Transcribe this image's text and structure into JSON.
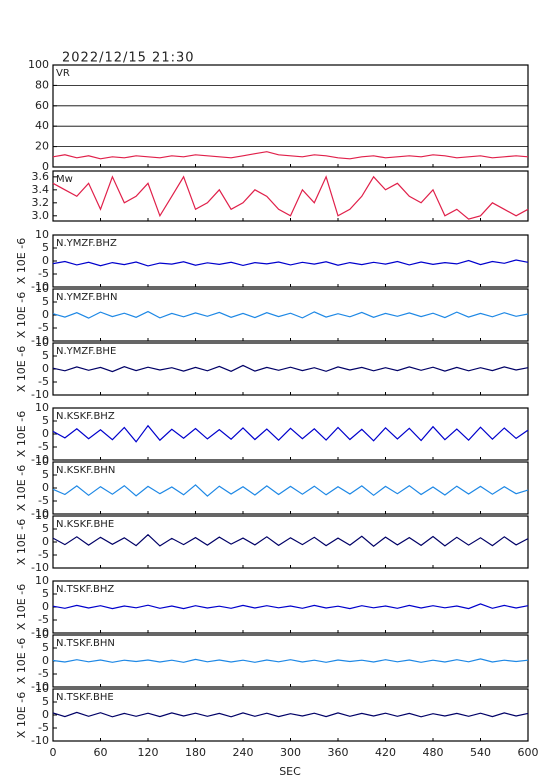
{
  "chart_data": [
    {
      "type": "line",
      "title": "2022/12/15 21:30",
      "grid": true,
      "xlim": [
        0,
        600
      ],
      "xticks": [
        0,
        60,
        120,
        180,
        240,
        300,
        360,
        420,
        480,
        540,
        600
      ],
      "ylim": [
        0,
        100
      ],
      "yticks": [
        0,
        20,
        40,
        60,
        80,
        100
      ],
      "x": [
        0,
        15,
        30,
        45,
        60,
        75,
        90,
        105,
        120,
        135,
        150,
        165,
        180,
        195,
        210,
        225,
        240,
        255,
        270,
        285,
        300,
        315,
        330,
        345,
        360,
        375,
        390,
        405,
        420,
        435,
        450,
        465,
        480,
        495,
        510,
        525,
        540,
        555,
        570,
        585,
        600
      ],
      "series": [
        {
          "name": "VR",
          "color": "#e0204a",
          "values": [
            10,
            12,
            9,
            11,
            8,
            10,
            9,
            11,
            10,
            9,
            11,
            10,
            12,
            11,
            10,
            9,
            11,
            13,
            15,
            12,
            11,
            10,
            12,
            11,
            9,
            8,
            10,
            11,
            9,
            10,
            11,
            10,
            12,
            11,
            9,
            10,
            11,
            9,
            10,
            11,
            10
          ]
        }
      ]
    },
    {
      "type": "line",
      "grid": false,
      "xlim": [
        0,
        600
      ],
      "xticks": [
        0,
        60,
        120,
        180,
        240,
        300,
        360,
        420,
        480,
        540,
        600
      ],
      "ylim": [
        2.92,
        3.69
      ],
      "yticks": [
        {
          "value": 3,
          "label": "3.0"
        },
        3.2,
        3.4,
        3.6
      ],
      "x": [
        0,
        15,
        30,
        45,
        60,
        75,
        90,
        105,
        120,
        135,
        150,
        165,
        180,
        195,
        210,
        225,
        240,
        255,
        270,
        285,
        300,
        315,
        330,
        345,
        360,
        375,
        390,
        405,
        420,
        435,
        450,
        465,
        480,
        495,
        510,
        525,
        540,
        555,
        570,
        585,
        600
      ],
      "series": [
        {
          "name": "Mw",
          "color": "#e0204a",
          "values": [
            3.5,
            3.4,
            3.3,
            3.5,
            3.1,
            3.6,
            3.2,
            3.3,
            3.5,
            3.0,
            3.3,
            3.6,
            3.1,
            3.2,
            3.4,
            3.1,
            3.2,
            3.4,
            3.3,
            3.1,
            3.0,
            3.4,
            3.2,
            3.6,
            3.0,
            3.1,
            3.3,
            3.6,
            3.4,
            3.5,
            3.3,
            3.2,
            3.4,
            3.0,
            3.1,
            2.95,
            3.0,
            3.2,
            3.1,
            3.0,
            3.1
          ]
        }
      ]
    },
    {
      "type": "line",
      "ylabel": "X 10E -6",
      "xlim": [
        0,
        600
      ],
      "xticks": [
        0,
        60,
        120,
        180,
        240,
        300,
        360,
        420,
        480,
        540,
        600
      ],
      "ylim": [
        -10,
        10
      ],
      "yticks": [
        -10,
        -5,
        0,
        5,
        10
      ],
      "x": [
        0,
        15,
        30,
        45,
        60,
        75,
        90,
        105,
        120,
        135,
        150,
        165,
        180,
        195,
        210,
        225,
        240,
        255,
        270,
        285,
        300,
        315,
        330,
        345,
        360,
        375,
        390,
        405,
        420,
        435,
        450,
        465,
        480,
        495,
        510,
        525,
        540,
        555,
        570,
        585,
        600
      ],
      "series": [
        {
          "name": "N.YMZF.BHZ",
          "color": "#0000cc",
          "values": [
            -1,
            -0.2,
            -1.5,
            -0.5,
            -1.8,
            -0.6,
            -1.4,
            -0.4,
            -1.9,
            -0.8,
            -1.2,
            -0.3,
            -1.6,
            -0.7,
            -1.3,
            -0.5,
            -1.7,
            -0.6,
            -1.1,
            -0.4,
            -1.5,
            -0.5,
            -1.2,
            -0.3,
            -1.6,
            -0.6,
            -1.4,
            -0.5,
            -1.2,
            -0.2,
            -1.5,
            -0.4,
            -1.3,
            -0.6,
            -1.1,
            0.2,
            -1.4,
            -0.2,
            -0.9,
            0.4,
            -0.5
          ]
        }
      ]
    },
    {
      "type": "line",
      "ylabel": "X 10E -6",
      "xlim": [
        0,
        600
      ],
      "xticks": [
        0,
        60,
        120,
        180,
        240,
        300,
        360,
        420,
        480,
        540,
        600
      ],
      "ylim": [
        -10,
        10
      ],
      "yticks": [
        -10,
        -5,
        0,
        5,
        10
      ],
      "x": [
        0,
        15,
        30,
        45,
        60,
        75,
        90,
        105,
        120,
        135,
        150,
        165,
        180,
        195,
        210,
        225,
        240,
        255,
        270,
        285,
        300,
        315,
        330,
        345,
        360,
        375,
        390,
        405,
        420,
        435,
        450,
        465,
        480,
        495,
        510,
        525,
        540,
        555,
        570,
        585,
        600
      ],
      "series": [
        {
          "name": "N.YMZF.BHN",
          "color": "#1e88e5",
          "values": [
            0.5,
            -0.8,
            0.9,
            -1.2,
            1.1,
            -0.6,
            0.7,
            -0.9,
            1.3,
            -1.1,
            0.6,
            -0.7,
            0.8,
            -0.5,
            1.0,
            -0.9,
            0.6,
            -1.0,
            0.9,
            -0.6,
            0.7,
            -1.1,
            1.2,
            -0.8,
            0.5,
            -0.7,
            1.0,
            -0.9,
            0.6,
            -0.5,
            0.8,
            -0.6,
            0.7,
            -1.0,
            1.1,
            -0.8,
            0.6,
            -0.7,
            0.9,
            -0.5,
            0.4
          ]
        }
      ]
    },
    {
      "type": "line",
      "ylabel": "X 10E -6",
      "xlim": [
        0,
        600
      ],
      "xticks": [
        0,
        60,
        120,
        180,
        240,
        300,
        360,
        420,
        480,
        540,
        600
      ],
      "ylim": [
        -10,
        10
      ],
      "yticks": [
        -10,
        -5,
        0,
        5,
        10
      ],
      "x": [
        0,
        15,
        30,
        45,
        60,
        75,
        90,
        105,
        120,
        135,
        150,
        165,
        180,
        195,
        210,
        225,
        240,
        255,
        270,
        285,
        300,
        315,
        330,
        345,
        360,
        375,
        390,
        405,
        420,
        435,
        450,
        465,
        480,
        495,
        510,
        525,
        540,
        555,
        570,
        585,
        600
      ],
      "series": [
        {
          "name": "N.YMZF.BHE",
          "color": "#000066",
          "values": [
            0.3,
            -0.7,
            0.8,
            -0.5,
            0.6,
            -1.0,
            0.9,
            -0.6,
            0.7,
            -0.4,
            0.5,
            -0.8,
            0.6,
            -0.7,
            1.0,
            -0.9,
            1.4,
            -0.8,
            0.6,
            -0.5,
            0.7,
            -0.6,
            0.5,
            -0.9,
            0.8,
            -0.4,
            0.6,
            -0.7,
            0.5,
            -0.6,
            0.8,
            -0.5,
            0.7,
            -0.8,
            0.6,
            -0.7,
            0.5,
            -0.6,
            0.8,
            -0.4,
            0.5
          ]
        }
      ]
    },
    {
      "type": "line",
      "ylabel": "X 10E -6",
      "xlim": [
        0,
        600
      ],
      "xticks": [
        0,
        60,
        120,
        180,
        240,
        300,
        360,
        420,
        480,
        540,
        600
      ],
      "ylim": [
        -10,
        10
      ],
      "yticks": [
        -10,
        -5,
        0,
        5,
        10
      ],
      "x": [
        0,
        15,
        30,
        45,
        60,
        75,
        90,
        105,
        120,
        135,
        150,
        165,
        180,
        195,
        210,
        225,
        240,
        255,
        270,
        285,
        300,
        315,
        330,
        345,
        360,
        375,
        390,
        405,
        420,
        435,
        450,
        465,
        480,
        495,
        510,
        525,
        540,
        555,
        570,
        585,
        600
      ],
      "series": [
        {
          "name": "N.KSKF.BHZ",
          "color": "#0000cc",
          "values": [
            1,
            -1.5,
            2,
            -1.8,
            1.6,
            -2.2,
            2.5,
            -3,
            3.2,
            -2.4,
            1.8,
            -1.6,
            2.1,
            -1.9,
            1.7,
            -2,
            2.3,
            -2.1,
            1.9,
            -2.4,
            2.2,
            -1.8,
            2,
            -2.3,
            2.5,
            -2.1,
            1.8,
            -2.6,
            2.4,
            -1.9,
            2.2,
            -2.5,
            2.8,
            -2.2,
            1.9,
            -2.4,
            2.6,
            -2,
            2.3,
            -1.7,
            1.5
          ]
        }
      ]
    },
    {
      "type": "line",
      "ylabel": "X 10E -6",
      "xlim": [
        0,
        600
      ],
      "xticks": [
        0,
        60,
        120,
        180,
        240,
        300,
        360,
        420,
        480,
        540,
        600
      ],
      "ylim": [
        -10,
        10
      ],
      "yticks": [
        -10,
        -5,
        0,
        5,
        10
      ],
      "x": [
        0,
        15,
        30,
        45,
        60,
        75,
        90,
        105,
        120,
        135,
        150,
        165,
        180,
        195,
        210,
        225,
        240,
        255,
        270,
        285,
        300,
        315,
        330,
        345,
        360,
        375,
        390,
        405,
        420,
        435,
        450,
        465,
        480,
        495,
        510,
        525,
        540,
        555,
        570,
        585,
        600
      ],
      "series": [
        {
          "name": "N.KSKF.BHN",
          "color": "#1e88e5",
          "values": [
            -0.5,
            -2.5,
            0.8,
            -2.8,
            0.5,
            -2.4,
            0.9,
            -3,
            0.6,
            -2.2,
            0.4,
            -2.6,
            1.2,
            -3.1,
            0.7,
            -2.3,
            0.5,
            -2.7,
            0.8,
            -2.5,
            0.6,
            -2.4,
            0.7,
            -2.6,
            0.5,
            -2.3,
            0.8,
            -2.8,
            0.6,
            -2.2,
            0.9,
            -2.5,
            0.4,
            -2.7,
            0.7,
            -2.3,
            0.6,
            -2.4,
            0.5,
            -2.2,
            -0.8
          ]
        }
      ]
    },
    {
      "type": "line",
      "ylabel": "X 10E -6",
      "xlim": [
        0,
        600
      ],
      "xticks": [
        0,
        60,
        120,
        180,
        240,
        300,
        360,
        420,
        480,
        540,
        600
      ],
      "ylim": [
        -10,
        10
      ],
      "yticks": [
        -10,
        -5,
        0,
        5,
        10
      ],
      "x": [
        0,
        15,
        30,
        45,
        60,
        75,
        90,
        105,
        120,
        135,
        150,
        165,
        180,
        195,
        210,
        225,
        240,
        255,
        270,
        285,
        300,
        315,
        330,
        345,
        360,
        375,
        390,
        405,
        420,
        435,
        450,
        465,
        480,
        495,
        510,
        525,
        540,
        555,
        570,
        585,
        600
      ],
      "series": [
        {
          "name": "N.KSKF.BHE",
          "color": "#000066",
          "values": [
            1.5,
            -1,
            2,
            -1.2,
            1.8,
            -0.9,
            1.6,
            -1.4,
            2.8,
            -1.5,
            1.4,
            -1,
            1.7,
            -1.2,
            1.9,
            -0.8,
            1.5,
            -1.1,
            2,
            -1.3,
            1.6,
            -1,
            1.8,
            -1.4,
            1.5,
            -1.2,
            2.2,
            -1.6,
            1.9,
            -1.1,
            1.7,
            -1.3,
            2.1,
            -1.5,
            1.8,
            -1.2,
            1.6,
            -1.4,
            2,
            -1.1,
            1.3
          ]
        }
      ]
    },
    {
      "type": "line",
      "ylabel": "X 10E -6",
      "xlim": [
        0,
        600
      ],
      "xticks": [
        0,
        60,
        120,
        180,
        240,
        300,
        360,
        420,
        480,
        540,
        600
      ],
      "ylim": [
        -10,
        10
      ],
      "yticks": [
        -10,
        -5,
        0,
        5,
        10
      ],
      "x": [
        0,
        15,
        30,
        45,
        60,
        75,
        90,
        105,
        120,
        135,
        150,
        165,
        180,
        195,
        210,
        225,
        240,
        255,
        270,
        285,
        300,
        315,
        330,
        345,
        360,
        375,
        390,
        405,
        420,
        435,
        450,
        465,
        480,
        495,
        510,
        525,
        540,
        555,
        570,
        585,
        600
      ],
      "series": [
        {
          "name": "N.TSKF.BHZ",
          "color": "#0000cc",
          "values": [
            0.3,
            -0.5,
            0.6,
            -0.4,
            0.5,
            -0.6,
            0.4,
            -0.3,
            0.7,
            -0.5,
            0.4,
            -0.6,
            0.5,
            -0.4,
            0.3,
            -0.5,
            0.6,
            -0.4,
            0.5,
            -0.3,
            0.4,
            -0.5,
            0.6,
            -0.4,
            0.3,
            -0.6,
            0.5,
            -0.3,
            0.4,
            -0.5,
            0.6,
            -0.4,
            0.5,
            -0.3,
            0.4,
            -0.6,
            1.2,
            -0.5,
            0.6,
            -0.4,
            0.5
          ]
        }
      ]
    },
    {
      "type": "line",
      "ylabel": "X 10E -6",
      "xlim": [
        0,
        600
      ],
      "xticks": [
        0,
        60,
        120,
        180,
        240,
        300,
        360,
        420,
        480,
        540,
        600
      ],
      "ylim": [
        -10,
        10
      ],
      "yticks": [
        -10,
        -5,
        0,
        5,
        10
      ],
      "x": [
        0,
        15,
        30,
        45,
        60,
        75,
        90,
        105,
        120,
        135,
        150,
        165,
        180,
        195,
        210,
        225,
        240,
        255,
        270,
        285,
        300,
        315,
        330,
        345,
        360,
        375,
        390,
        405,
        420,
        435,
        450,
        465,
        480,
        495,
        510,
        525,
        540,
        555,
        570,
        585,
        600
      ],
      "series": [
        {
          "name": "N.TSKF.BHN",
          "color": "#1e88e5",
          "values": [
            0.2,
            -0.4,
            0.5,
            -0.3,
            0.4,
            -0.5,
            0.3,
            -0.2,
            0.4,
            -0.4,
            0.3,
            -0.5,
            0.6,
            -0.3,
            0.4,
            -0.4,
            0.3,
            -0.5,
            0.4,
            -0.3,
            0.5,
            -0.4,
            0.3,
            -0.5,
            0.4,
            -0.2,
            0.3,
            -0.4,
            0.5,
            -0.3,
            0.4,
            -0.5,
            0.3,
            -0.4,
            0.5,
            -0.3,
            0.8,
            -0.4,
            0.3,
            -0.2,
            0.3
          ]
        }
      ]
    },
    {
      "type": "line",
      "ylabel": "X 10E -6",
      "xlabel": "SEC",
      "xlim": [
        0,
        600
      ],
      "xticks": [
        0,
        60,
        120,
        180,
        240,
        300,
        360,
        420,
        480,
        540,
        600
      ],
      "ylim": [
        -10,
        10
      ],
      "yticks": [
        -10,
        -5,
        0,
        5,
        10
      ],
      "x": [
        0,
        15,
        30,
        45,
        60,
        75,
        90,
        105,
        120,
        135,
        150,
        165,
        180,
        195,
        210,
        225,
        240,
        255,
        270,
        285,
        300,
        315,
        330,
        345,
        360,
        375,
        390,
        405,
        420,
        435,
        450,
        465,
        480,
        495,
        510,
        525,
        540,
        555,
        570,
        585,
        600
      ],
      "series": [
        {
          "name": "N.TSKF.BHE",
          "color": "#000066",
          "values": [
            0.8,
            -0.6,
            1,
            -0.5,
            0.9,
            -0.7,
            0.6,
            -0.5,
            0.7,
            -0.6,
            0.8,
            -0.4,
            0.7,
            -0.5,
            0.6,
            -0.7,
            0.8,
            -0.5,
            0.7,
            -0.6,
            0.5,
            -0.4,
            0.7,
            -0.6,
            0.8,
            -0.5,
            0.6,
            -0.4,
            0.7,
            -0.5,
            0.6,
            -0.7,
            0.5,
            -0.4,
            0.6,
            -0.5,
            0.7,
            -0.6,
            0.8,
            -0.4,
            0.6
          ]
        }
      ]
    }
  ]
}
